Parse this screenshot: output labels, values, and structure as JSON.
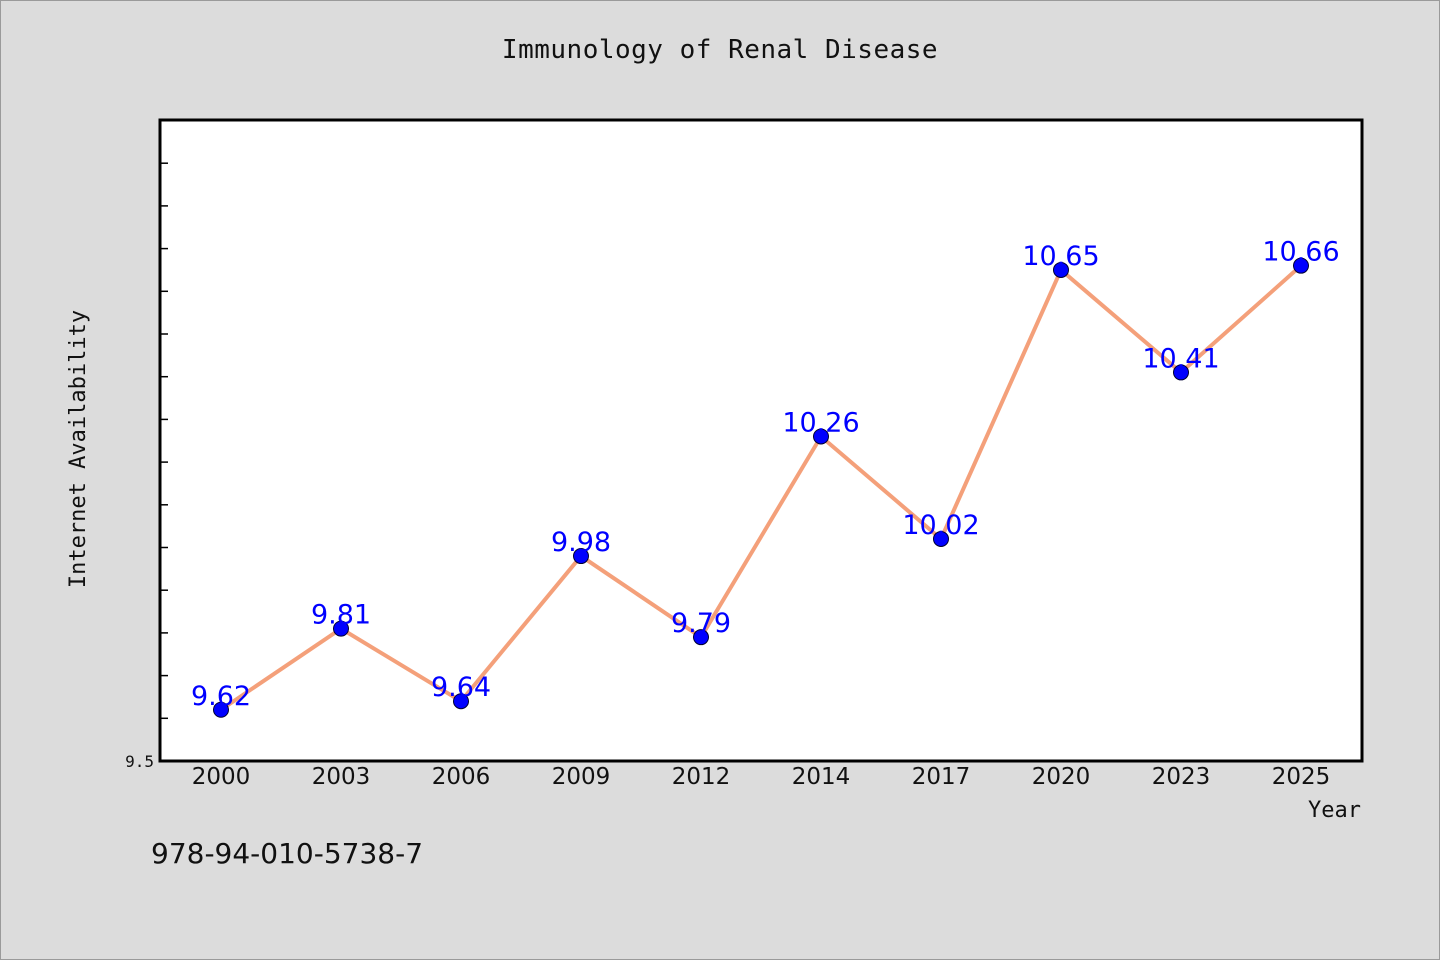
{
  "chart_data": {
    "type": "line",
    "title": "Immunology of Renal Disease",
    "xlabel": "Year",
    "ylabel": "Internet Availability",
    "categories": [
      "2000",
      "2003",
      "2006",
      "2009",
      "2012",
      "2014",
      "2017",
      "2020",
      "2023",
      "2025"
    ],
    "series": [
      {
        "values": [
          9.62,
          9.81,
          9.64,
          9.98,
          9.79,
          10.26,
          10.02,
          10.65,
          10.41,
          10.66
        ]
      }
    ],
    "ylim": [
      9.5,
      11.0
    ],
    "y_tick_labels": [
      {
        "value": 9.5,
        "label": "9.5"
      }
    ],
    "y_minor_ticks": [
      9.6,
      9.7,
      9.8,
      9.9,
      10.0,
      10.1,
      10.2,
      10.3,
      10.4,
      10.5,
      10.6,
      10.7,
      10.8,
      10.9
    ],
    "data_labels": true,
    "grid": false,
    "legend": "none",
    "colors": {
      "line": "#f4a07a",
      "marker": "#0000ff",
      "data_label": "#0000ff",
      "plot_background": "#ffffff",
      "page_background": "#dcdcdc"
    }
  },
  "footer": {
    "isbn": "978-94-010-5738-7"
  }
}
